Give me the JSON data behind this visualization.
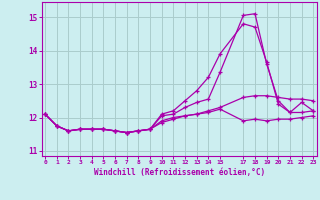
{
  "xlabel": "Windchill (Refroidissement éolien,°C)",
  "background_color": "#cceef0",
  "grid_color": "#aacccc",
  "line_color": "#aa00aa",
  "x_ticks": [
    0,
    1,
    2,
    3,
    4,
    5,
    6,
    7,
    8,
    9,
    10,
    11,
    12,
    13,
    14,
    15,
    17,
    18,
    19,
    20,
    21,
    22,
    23
  ],
  "ylim": [
    10.85,
    15.45
  ],
  "xlim": [
    -0.3,
    23.3
  ],
  "yticks": [
    11,
    12,
    13,
    14,
    15
  ],
  "series": [
    [
      12.1,
      11.75,
      11.6,
      11.65,
      11.65,
      11.65,
      11.6,
      11.55,
      11.6,
      11.65,
      12.05,
      12.1,
      12.3,
      12.45,
      12.55,
      13.35,
      15.05,
      15.1,
      13.6,
      12.5,
      12.15,
      12.15,
      12.2
    ],
    [
      12.1,
      11.75,
      11.6,
      11.65,
      11.65,
      11.65,
      11.6,
      11.55,
      11.6,
      11.65,
      12.1,
      12.2,
      12.5,
      12.8,
      13.2,
      13.9,
      14.8,
      14.7,
      13.65,
      12.4,
      12.15,
      12.45,
      12.2
    ],
    [
      12.1,
      11.75,
      11.6,
      11.65,
      11.65,
      11.65,
      11.6,
      11.55,
      11.6,
      11.65,
      11.85,
      11.95,
      12.05,
      12.1,
      12.2,
      12.3,
      12.6,
      12.65,
      12.65,
      12.6,
      12.55,
      12.55,
      12.5
    ],
    [
      12.1,
      11.75,
      11.6,
      11.65,
      11.65,
      11.65,
      11.6,
      11.55,
      11.6,
      11.65,
      11.9,
      12.0,
      12.05,
      12.1,
      12.15,
      12.25,
      11.9,
      11.95,
      11.9,
      11.95,
      11.95,
      12.0,
      12.05
    ]
  ],
  "x_positions": [
    0,
    1,
    2,
    3,
    4,
    5,
    6,
    7,
    8,
    9,
    10,
    11,
    12,
    13,
    14,
    15,
    17,
    18,
    19,
    20,
    21,
    22,
    23
  ]
}
